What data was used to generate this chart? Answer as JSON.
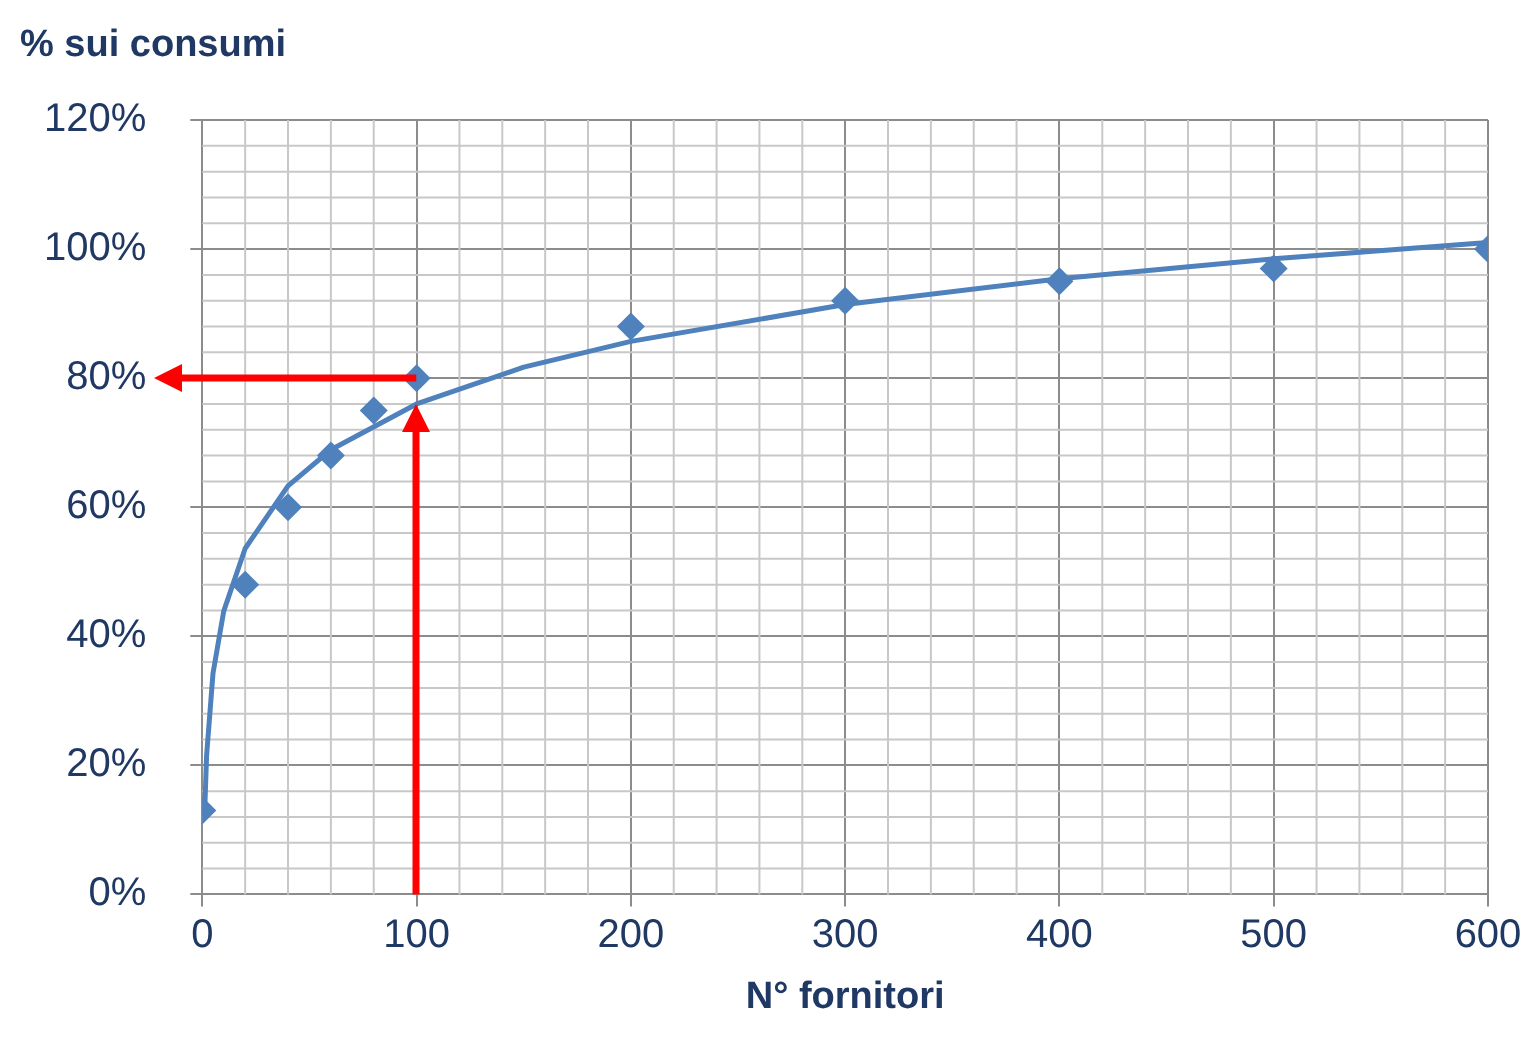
{
  "chart_data": {
    "type": "scatter",
    "ylabel": "% sui consumi",
    "xlabel": "N° fornitori",
    "xlim": [
      0,
      600
    ],
    "xticks": [
      0,
      100,
      200,
      300,
      400,
      500,
      600
    ],
    "ylim": [
      0,
      120
    ],
    "yticks": [
      {
        "value": 0,
        "label": "0%"
      },
      {
        "value": 20,
        "label": "20%"
      },
      {
        "value": 40,
        "label": "40%"
      },
      {
        "value": 60,
        "label": "60%"
      },
      {
        "value": 80,
        "label": "80%"
      },
      {
        "value": 100,
        "label": "100%"
      },
      {
        "value": 120,
        "label": "120%"
      }
    ],
    "grid": true,
    "legend": false,
    "series": [
      {
        "type": "scatter",
        "color": "#4f81bd",
        "marker": "diamond",
        "x": [
          0,
          20,
          40,
          60,
          80,
          100,
          200,
          300,
          400,
          500,
          600
        ],
        "values": [
          13,
          48,
          60,
          68,
          75,
          80,
          88,
          92,
          95,
          97,
          100
        ]
      },
      {
        "type": "line",
        "color": "#4f81bd",
        "marker": "none",
        "line_style": "solid",
        "x": [
          1,
          2,
          5,
          10,
          20,
          40,
          60,
          100,
          150,
          200,
          300,
          400,
          500,
          600
        ],
        "values": [
          11.8,
          21.5,
          34.3,
          43.9,
          53.6,
          63.3,
          68.9,
          76,
          81.7,
          85.7,
          91.4,
          95.4,
          98.5,
          101
        ]
      }
    ]
  }
}
